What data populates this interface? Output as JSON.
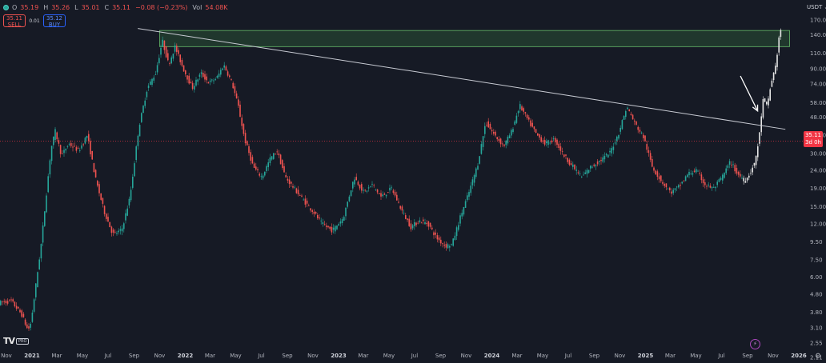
{
  "header": {
    "o_label": "O",
    "o_value": "35.19",
    "h_label": "H",
    "h_value": "35.26",
    "l_label": "L",
    "l_value": "35.01",
    "c_label": "C",
    "c_value": "35.11",
    "change": "−0.08 (−0.23%)",
    "vol_label": "Vol",
    "vol_value": "54.08K"
  },
  "trade": {
    "sell_price": "35.11",
    "sell_label": "SELL",
    "spread": "0.01",
    "buy_price": "35.12",
    "buy_label": "BUY"
  },
  "currency": "USDT",
  "price_tag": {
    "price": "35.11",
    "countdown": "3d 0h"
  },
  "logo": {
    "pro": "PRO"
  },
  "colors": {
    "background": "#161a25",
    "up": "#26a69a",
    "down": "#ef5350",
    "zone_fill": "rgba(76,175,80,0.20)",
    "zone_border": "#66bb6a",
    "trendline": "#c8cbd3",
    "recent_candles": "#e6e6e6",
    "price_line": "#f23645"
  },
  "icons": [
    "symbol-icon",
    "currency-chevron-icon",
    "flash-icon",
    "settings-icon",
    "tradingview-logo-icon"
  ],
  "chart_data": {
    "type": "candlestick",
    "y_scale": "log",
    "y_ticks": [
      170.0,
      140.0,
      110.0,
      90.0,
      74.0,
      58.0,
      48.0,
      38.0,
      30.0,
      24.0,
      19.0,
      15.0,
      12.0,
      9.5,
      7.5,
      6.0,
      4.8,
      3.8,
      3.1,
      2.55,
      2.11
    ],
    "y_tick_labels": [
      "170.00",
      "140.00",
      "110.00",
      "90.00",
      "74.00",
      "58.00",
      "48.00",
      "38.00",
      "30.00",
      "24.00",
      "19.00",
      "15.00",
      "12.00",
      "9.50",
      "7.50",
      "6.00",
      "4.80",
      "3.80",
      "3.10",
      "2.55",
      "2.11"
    ],
    "x_ticks": [
      {
        "date": "2020-11-01",
        "label": "Nov"
      },
      {
        "date": "2021-01-01",
        "label": "2021"
      },
      {
        "date": "2021-03-01",
        "label": "Mar"
      },
      {
        "date": "2021-05-01",
        "label": "May"
      },
      {
        "date": "2021-07-01",
        "label": "Jul"
      },
      {
        "date": "2021-09-01",
        "label": "Sep"
      },
      {
        "date": "2021-11-01",
        "label": "Nov"
      },
      {
        "date": "2022-01-01",
        "label": "2022"
      },
      {
        "date": "2022-03-01",
        "label": "Mar"
      },
      {
        "date": "2022-05-01",
        "label": "May"
      },
      {
        "date": "2022-07-01",
        "label": "Jul"
      },
      {
        "date": "2022-09-01",
        "label": "Sep"
      },
      {
        "date": "2022-11-01",
        "label": "Nov"
      },
      {
        "date": "2023-01-01",
        "label": "2023"
      },
      {
        "date": "2023-03-01",
        "label": "Mar"
      },
      {
        "date": "2023-05-01",
        "label": "May"
      },
      {
        "date": "2023-07-01",
        "label": "Jul"
      },
      {
        "date": "2023-09-01",
        "label": "Sep"
      },
      {
        "date": "2023-11-01",
        "label": "Nov"
      },
      {
        "date": "2024-01-01",
        "label": "2024"
      },
      {
        "date": "2024-03-01",
        "label": "Mar"
      },
      {
        "date": "2024-05-01",
        "label": "May"
      },
      {
        "date": "2024-07-01",
        "label": "Jul"
      },
      {
        "date": "2024-09-01",
        "label": "Sep"
      },
      {
        "date": "2024-11-01",
        "label": "Nov"
      },
      {
        "date": "2025-01-01",
        "label": "2025"
      },
      {
        "date": "2025-03-01",
        "label": "Mar"
      },
      {
        "date": "2025-05-01",
        "label": "May"
      },
      {
        "date": "2025-07-01",
        "label": "Jul"
      },
      {
        "date": "2025-09-01",
        "label": "Sep"
      },
      {
        "date": "2025-11-01",
        "label": "Nov"
      },
      {
        "date": "2026-01-01",
        "label": "2026"
      }
    ],
    "price_path": [
      [
        "2020-10-20",
        4.3
      ],
      [
        "2020-11-15",
        4.4
      ],
      [
        "2020-12-10",
        3.7
      ],
      [
        "2020-12-25",
        3.0
      ],
      [
        "2021-01-01",
        3.3
      ],
      [
        "2021-01-25",
        9.0
      ],
      [
        "2021-02-18",
        32.0
      ],
      [
        "2021-02-28",
        40.0
      ],
      [
        "2021-03-15",
        29.0
      ],
      [
        "2021-04-01",
        34.0
      ],
      [
        "2021-04-25",
        31.0
      ],
      [
        "2021-05-15",
        38.0
      ],
      [
        "2021-06-05",
        21.0
      ],
      [
        "2021-06-25",
        14.0
      ],
      [
        "2021-07-15",
        10.5
      ],
      [
        "2021-08-05",
        11.0
      ],
      [
        "2021-08-25",
        17.0
      ],
      [
        "2021-09-15",
        42.0
      ],
      [
        "2021-10-05",
        70.0
      ],
      [
        "2021-10-25",
        85.0
      ],
      [
        "2021-11-10",
        130.0
      ],
      [
        "2021-11-25",
        95.0
      ],
      [
        "2021-12-10",
        120.0
      ],
      [
        "2021-12-30",
        90.0
      ],
      [
        "2022-01-20",
        70.0
      ],
      [
        "2022-02-10",
        85.0
      ],
      [
        "2022-03-01",
        75.0
      ],
      [
        "2022-03-20",
        80.0
      ],
      [
        "2022-04-05",
        95.0
      ],
      [
        "2022-04-25",
        75.0
      ],
      [
        "2022-05-10",
        55.0
      ],
      [
        "2022-05-25",
        36.0
      ],
      [
        "2022-06-15",
        25.0
      ],
      [
        "2022-07-05",
        22.0
      ],
      [
        "2022-07-25",
        28.0
      ],
      [
        "2022-08-10",
        31.0
      ],
      [
        "2022-08-30",
        22.0
      ],
      [
        "2022-09-20",
        19.0
      ],
      [
        "2022-10-15",
        16.0
      ],
      [
        "2022-11-05",
        14.0
      ],
      [
        "2022-11-25",
        12.0
      ],
      [
        "2022-12-20",
        11.0
      ],
      [
        "2023-01-15",
        13.0
      ],
      [
        "2023-02-10",
        22.0
      ],
      [
        "2023-03-05",
        18.0
      ],
      [
        "2023-03-25",
        20.0
      ],
      [
        "2023-04-15",
        17.0
      ],
      [
        "2023-05-10",
        19.0
      ],
      [
        "2023-06-05",
        14.0
      ],
      [
        "2023-06-25",
        11.5
      ],
      [
        "2023-07-15",
        12.5
      ],
      [
        "2023-08-05",
        12.0
      ],
      [
        "2023-08-25",
        10.0
      ],
      [
        "2023-09-15",
        9.0
      ],
      [
        "2023-10-01",
        9.2
      ],
      [
        "2023-10-20",
        13.0
      ],
      [
        "2023-11-10",
        18.0
      ],
      [
        "2023-12-01",
        26.0
      ],
      [
        "2023-12-20",
        45.0
      ],
      [
        "2024-01-10",
        38.0
      ],
      [
        "2024-02-01",
        33.0
      ],
      [
        "2024-02-20",
        40.0
      ],
      [
        "2024-03-10",
        56.0
      ],
      [
        "2024-03-30",
        46.0
      ],
      [
        "2024-04-20",
        38.0
      ],
      [
        "2024-05-10",
        34.0
      ],
      [
        "2024-06-01",
        36.0
      ],
      [
        "2024-06-20",
        30.0
      ],
      [
        "2024-07-10",
        26.0
      ],
      [
        "2024-08-05",
        22.0
      ],
      [
        "2024-08-25",
        25.0
      ],
      [
        "2024-09-15",
        27.0
      ],
      [
        "2024-10-10",
        30.0
      ],
      [
        "2024-10-30",
        38.0
      ],
      [
        "2024-11-20",
        55.0
      ],
      [
        "2024-12-10",
        44.0
      ],
      [
        "2024-12-30",
        37.0
      ],
      [
        "2025-01-20",
        25.0
      ],
      [
        "2025-02-10",
        21.0
      ],
      [
        "2025-03-05",
        18.0
      ],
      [
        "2025-03-25",
        19.5
      ],
      [
        "2025-04-15",
        23.0
      ],
      [
        "2025-05-05",
        24.0
      ],
      [
        "2025-05-25",
        20.0
      ],
      [
        "2025-06-15",
        19.0
      ],
      [
        "2025-07-05",
        22.0
      ],
      [
        "2025-07-25",
        27.0
      ],
      [
        "2025-08-10",
        23.0
      ],
      [
        "2025-08-30",
        21.0
      ],
      [
        "2025-09-20",
        26.0
      ],
      [
        "2025-10-01",
        36.0
      ],
      [
        "2025-10-10",
        60.0
      ],
      [
        "2025-10-20",
        55.0
      ],
      [
        "2025-10-30",
        75.0
      ],
      [
        "2025-11-10",
        95.0
      ],
      [
        "2025-11-20",
        150.0
      ]
    ],
    "highlighted_period": [
      "2025-08-20",
      "2025-11-25"
    ],
    "current_price": 35.11,
    "resistance_zone": {
      "start": "2021-11-01",
      "end": "2025-12-10",
      "low": 120.0,
      "high": 148.0
    },
    "trendline": {
      "start": [
        "2021-09-10",
        152.0
      ],
      "end": [
        "2025-11-30",
        41.0
      ]
    },
    "annotations": [
      {
        "type": "arrow",
        "from": [
          "2025-08-15",
          82.0
        ],
        "to": [
          "2025-09-25",
          52.0
        ]
      }
    ]
  }
}
